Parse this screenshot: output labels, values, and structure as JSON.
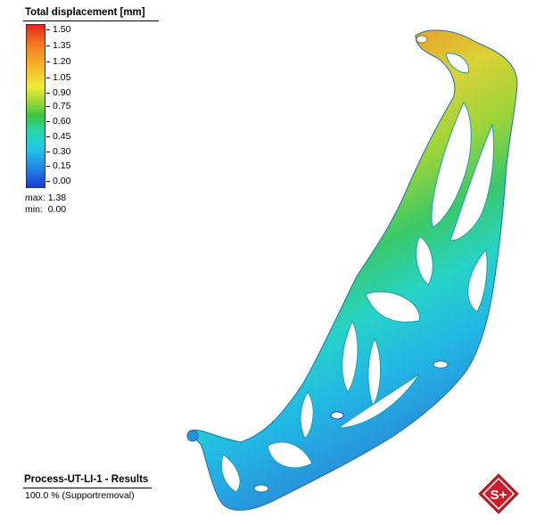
{
  "legend": {
    "title": "Total displacement [mm]",
    "ticks": [
      "1.50",
      "1.35",
      "1.20",
      "1.05",
      "0.90",
      "0.75",
      "0.60",
      "0.45",
      "0.30",
      "0.15",
      "0.00"
    ],
    "max_label": "max:",
    "max_value": "1.38",
    "min_label": "min:",
    "min_value": "0.00",
    "colors": [
      "#e8241a",
      "#f47a1e",
      "#f5b62a",
      "#f1ec35",
      "#9ad43a",
      "#38c63c",
      "#26d6b0",
      "#22c8e8",
      "#1f88e6",
      "#1a3bd6"
    ]
  },
  "result": {
    "title": "Process-UT-LI-1 - Results",
    "subtitle": "100.0 % (Supportremoval)"
  },
  "logo": {
    "text": "S+",
    "color": "#c8202a"
  }
}
